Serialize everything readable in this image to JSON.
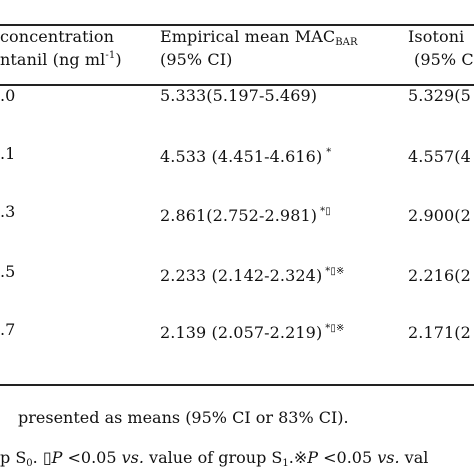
{
  "table": {
    "headers": {
      "col1_line1": "concentration",
      "col1_line2_prefix": "ntanil (ng ml",
      "col1_line2_sup": "-1",
      "col1_line2_suffix": ")",
      "col2_line1_prefix": "Empirical mean MAC",
      "col2_line1_sub": "BAR",
      "col2_line2": "(95% CI)",
      "col3_line1": "Isotoni",
      "col3_line2": "(95% C"
    },
    "rows": [
      {
        "dose": ".0",
        "empirical": "5.333(5.197-5.469)",
        "empirical_marks": "",
        "isotonic": "5.329(5"
      },
      {
        "dose": ".1",
        "empirical": "4.533 (4.451-4.616)",
        "empirical_marks": "*",
        "isotonic": "4.557(4"
      },
      {
        "dose": ".3",
        "empirical": "2.861(2.752-2.981)",
        "empirical_marks": "*▯",
        "isotonic": "2.900(2"
      },
      {
        "dose": ".5",
        "empirical": "2.233 (2.142-2.324)",
        "empirical_marks": "*▯※",
        "isotonic": "2.216(2"
      },
      {
        "dose": ".7",
        "empirical": "2.139 (2.057-2.219)",
        "empirical_marks": "*▯※",
        "isotonic": "2.171(2"
      }
    ]
  },
  "footnotes": {
    "line1": "presented as means (95% CI or 83% CI).",
    "line2": {
      "part1": "p S",
      "part1_sub": "0",
      "part2": ". ▯",
      "p_italic": "P",
      "part3": " <0.05 ",
      "vs_italic": "vs.",
      "part4": " value of group S",
      "part4_sub": "1",
      "part5": ".※",
      "p2_italic": "P",
      "part6": " <0.05 ",
      "vs2_italic": "vs.",
      "part7": " val"
    }
  }
}
